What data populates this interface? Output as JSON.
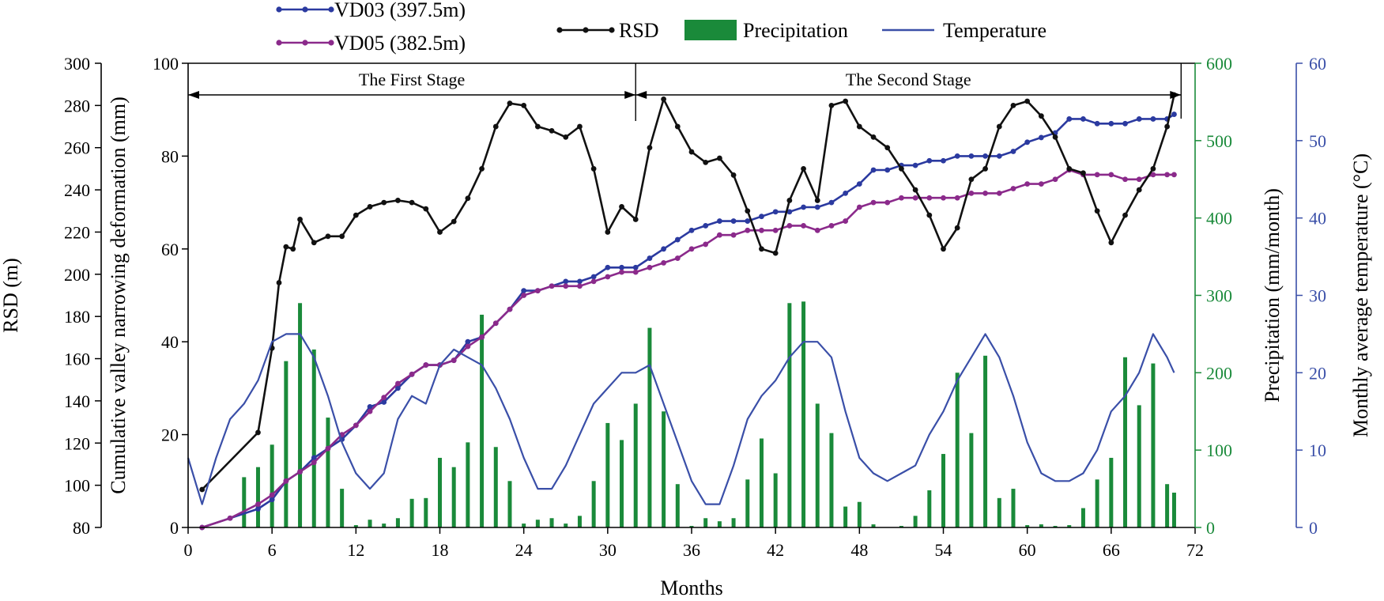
{
  "chart_data": {
    "type": "line",
    "xlabel": "Months",
    "xlim": [
      0,
      72
    ],
    "xticks": [
      0,
      6,
      12,
      18,
      24,
      30,
      36,
      42,
      48,
      54,
      60,
      66,
      72
    ],
    "axes": {
      "rsd": {
        "label": "RSD (m)",
        "lim": [
          80,
          300
        ],
        "ticks": [
          80,
          100,
          120,
          140,
          160,
          180,
          200,
          220,
          240,
          260,
          280,
          300
        ],
        "color": "#000000"
      },
      "deformation": {
        "label": "Cumulative valley narrowing deformation (mm)",
        "lim": [
          0,
          100
        ],
        "ticks": [
          0,
          20,
          40,
          60,
          80,
          100
        ],
        "color": "#000000"
      },
      "precipitation": {
        "label": "Precipitation (mm/month)",
        "lim": [
          0,
          600
        ],
        "ticks": [
          0,
          100,
          200,
          300,
          400,
          500,
          600
        ],
        "color": "#1a8a3a"
      },
      "temperature": {
        "label": "Monthly average temperature (°C)",
        "lim": [
          0,
          60
        ],
        "ticks": [
          0,
          10,
          20,
          30,
          40,
          50,
          60
        ],
        "color": "#3a4fa8"
      }
    },
    "stages": [
      {
        "label": "The First Stage",
        "start": 0,
        "end": 32
      },
      {
        "label": "The Second Stage",
        "start": 32,
        "end": 71
      }
    ],
    "legend": [
      {
        "name": "VD03 (397.5m)",
        "kind": "line-marker",
        "color": "#2b3aa0"
      },
      {
        "name": "VD05 (382.5m)",
        "kind": "line-marker",
        "color": "#8b2a8b"
      },
      {
        "name": "RSD",
        "kind": "line-marker",
        "color": "#111111"
      },
      {
        "name": "Precipitation",
        "kind": "bar",
        "color": "#1a8a3a"
      },
      {
        "name": "Temperature",
        "kind": "line",
        "color": "#3a4fa8"
      }
    ],
    "series": [
      {
        "name": "VD03 (397.5m)",
        "axis": "deformation",
        "kind": "line-marker",
        "color": "#2b3aa0",
        "x": [
          1,
          3,
          5,
          6,
          7,
          8,
          9,
          10,
          11,
          12,
          13,
          14,
          15,
          16,
          17,
          18,
          19,
          20,
          21,
          22,
          23,
          24,
          25,
          26,
          27,
          28,
          29,
          30,
          31,
          32,
          33,
          34,
          35,
          36,
          37,
          38,
          39,
          40,
          41,
          42,
          43,
          44,
          45,
          46,
          47,
          48,
          49,
          50,
          51,
          52,
          53,
          54,
          55,
          56,
          57,
          58,
          59,
          60,
          61,
          62,
          63,
          64,
          65,
          66,
          67,
          68,
          69,
          70,
          70.5
        ],
        "y": [
          0,
          2,
          4,
          6,
          10,
          12,
          15,
          17,
          19,
          22,
          26,
          27,
          30,
          33,
          35,
          35,
          36,
          40,
          41,
          44,
          47,
          51,
          51,
          52,
          53,
          53,
          54,
          56,
          56,
          56,
          58,
          60,
          62,
          64,
          65,
          66,
          66,
          66,
          67,
          68,
          68,
          69,
          69,
          70,
          72,
          74,
          77,
          77,
          78,
          78,
          79,
          79,
          80,
          80,
          80,
          80,
          81,
          83,
          84,
          85,
          88,
          88,
          87,
          87,
          87,
          88,
          88,
          88,
          89
        ]
      },
      {
        "name": "VD05 (382.5m)",
        "axis": "deformation",
        "kind": "line-marker",
        "color": "#8b2a8b",
        "x": [
          1,
          3,
          5,
          6,
          7,
          8,
          9,
          10,
          11,
          12,
          13,
          14,
          15,
          16,
          17,
          18,
          19,
          20,
          21,
          22,
          23,
          24,
          25,
          26,
          27,
          28,
          29,
          30,
          31,
          32,
          33,
          34,
          35,
          36,
          37,
          38,
          39,
          40,
          41,
          42,
          43,
          44,
          45,
          46,
          47,
          48,
          49,
          50,
          51,
          52,
          53,
          54,
          55,
          56,
          57,
          58,
          59,
          60,
          61,
          62,
          63,
          64,
          65,
          66,
          67,
          68,
          69,
          70,
          70.5
        ],
        "y": [
          0,
          2,
          5,
          7,
          10,
          12,
          14,
          17,
          20,
          22,
          25,
          28,
          31,
          33,
          35,
          35,
          36,
          39,
          41,
          44,
          47,
          50,
          51,
          52,
          52,
          52,
          53,
          54,
          55,
          55,
          56,
          57,
          58,
          60,
          61,
          63,
          63,
          64,
          64,
          64,
          65,
          65,
          64,
          65,
          66,
          69,
          70,
          70,
          71,
          71,
          71,
          71,
          71,
          72,
          72,
          72,
          73,
          74,
          74,
          75,
          77,
          76,
          76,
          76,
          75,
          75,
          76,
          76,
          76
        ]
      },
      {
        "name": "RSD",
        "axis": "rsd",
        "kind": "line-marker",
        "color": "#111111",
        "x": [
          1,
          5,
          6,
          6.5,
          7,
          7.5,
          8,
          9,
          10,
          11,
          12,
          13,
          14,
          15,
          16,
          17,
          18,
          19,
          20,
          21,
          22,
          23,
          24,
          25,
          26,
          27,
          28,
          29,
          30,
          31,
          32,
          33,
          34,
          35,
          36,
          37,
          38,
          39,
          40,
          41,
          42,
          43,
          44,
          45,
          46,
          47,
          48,
          49,
          50,
          51,
          52,
          53,
          54,
          55,
          56,
          57,
          58,
          59,
          60,
          61,
          62,
          63,
          64,
          65,
          66,
          67,
          68,
          69,
          70,
          70.5
        ],
        "y": [
          98,
          125,
          165,
          196,
          213,
          212,
          226,
          215,
          218,
          218,
          228,
          232,
          234,
          235,
          234,
          231,
          220,
          225,
          236,
          250,
          270,
          281,
          280,
          270,
          268,
          265,
          270,
          250,
          220,
          232,
          226,
          260,
          283,
          270,
          258,
          253,
          255,
          247,
          230,
          212,
          210,
          235,
          250,
          235,
          280,
          282,
          270,
          265,
          260,
          250,
          240,
          228,
          212,
          222,
          245,
          250,
          270,
          280,
          282,
          275,
          265,
          250,
          248,
          230,
          215,
          228,
          240,
          250,
          270,
          285
        ]
      },
      {
        "name": "Temperature",
        "axis": "temperature",
        "kind": "line",
        "color": "#3a4fa8",
        "x": [
          0,
          1,
          2,
          3,
          4,
          5,
          6,
          7,
          8,
          9,
          10,
          11,
          12,
          13,
          14,
          15,
          16,
          17,
          18,
          19,
          20,
          21,
          22,
          23,
          24,
          25,
          26,
          27,
          28,
          29,
          30,
          31,
          32,
          33,
          34,
          35,
          36,
          37,
          38,
          39,
          40,
          41,
          42,
          43,
          44,
          45,
          46,
          47,
          48,
          49,
          50,
          51,
          52,
          53,
          54,
          55,
          56,
          57,
          58,
          59,
          60,
          61,
          62,
          63,
          64,
          65,
          66,
          67,
          68,
          69,
          70,
          70.5
        ],
        "y": [
          9,
          3,
          9,
          14,
          16,
          19,
          24,
          25,
          25,
          22,
          17,
          11,
          7,
          5,
          7,
          14,
          17,
          16,
          21,
          23,
          22,
          21,
          18,
          14,
          9,
          5,
          5,
          8,
          12,
          16,
          18,
          20,
          20,
          21,
          16,
          11,
          6,
          3,
          3,
          8,
          14,
          17,
          19,
          22,
          24,
          24,
          22,
          15,
          9,
          7,
          6,
          7,
          8,
          12,
          15,
          19,
          22,
          25,
          22,
          17,
          11,
          7,
          6,
          6,
          7,
          10,
          15,
          17,
          20,
          25,
          22,
          20
        ]
      }
    ],
    "precipitation": {
      "name": "Precipitation",
      "axis": "precipitation",
      "color": "#1a8a3a",
      "x": [
        1,
        2,
        3,
        4,
        5,
        6,
        7,
        8,
        9,
        10,
        11,
        12,
        13,
        14,
        15,
        16,
        17,
        18,
        19,
        20,
        21,
        22,
        23,
        24,
        25,
        26,
        27,
        28,
        29,
        30,
        31,
        32,
        33,
        34,
        35,
        36,
        37,
        38,
        39,
        40,
        41,
        42,
        43,
        44,
        45,
        46,
        47,
        48,
        49,
        50,
        51,
        52,
        53,
        54,
        55,
        56,
        57,
        58,
        59,
        60,
        61,
        62,
        63,
        64,
        65,
        66,
        67,
        68,
        69,
        70,
        70.5
      ],
      "values": [
        0,
        0,
        0,
        65,
        78,
        107,
        215,
        290,
        230,
        142,
        50,
        3,
        10,
        5,
        12,
        37,
        38,
        90,
        78,
        110,
        275,
        104,
        60,
        5,
        10,
        12,
        5,
        15,
        60,
        135,
        113,
        160,
        258,
        150,
        56,
        2,
        12,
        8,
        12,
        62,
        115,
        70,
        290,
        292,
        160,
        122,
        27,
        33,
        4,
        0,
        2,
        15,
        48,
        95,
        200,
        122,
        222,
        38,
        50,
        3,
        4,
        2,
        3,
        25,
        62,
        90,
        220,
        158,
        212,
        56,
        45
      ]
    }
  }
}
